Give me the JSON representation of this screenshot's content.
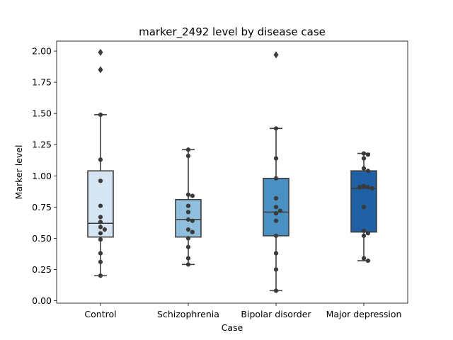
{
  "chart_data": {
    "type": "box",
    "title": "marker_2492 level by disease case",
    "xlabel": "Case",
    "ylabel": "Marker level",
    "ylim": [
      -0.02,
      2.08
    ],
    "yticks": [
      0.0,
      0.25,
      0.5,
      0.75,
      1.0,
      1.25,
      1.5,
      1.75,
      2.0
    ],
    "ytick_labels": [
      "0.00",
      "0.25",
      "0.50",
      "0.75",
      "1.00",
      "1.25",
      "1.50",
      "1.75",
      "2.00"
    ],
    "categories": [
      "Control",
      "Schizophrenia",
      "Bipolar disorder",
      "Major depression"
    ],
    "colors": [
      "#d6e5f3",
      "#8fbfdd",
      "#4a90c3",
      "#2060a5"
    ],
    "grid": false,
    "boxes": [
      {
        "q1": 0.51,
        "median": 0.62,
        "q3": 1.04,
        "whisker_low": 0.2,
        "whisker_high": 1.49,
        "outliers": [
          1.99,
          1.85
        ],
        "points": [
          1.49,
          1.13,
          0.96,
          0.76,
          0.67,
          0.63,
          0.59,
          0.57,
          0.54,
          0.49,
          0.38,
          0.31,
          0.2
        ]
      },
      {
        "q1": 0.51,
        "median": 0.65,
        "q3": 0.81,
        "whisker_low": 0.29,
        "whisker_high": 1.21,
        "outliers": [],
        "points": [
          1.21,
          1.16,
          0.85,
          0.84,
          0.76,
          0.71,
          0.65,
          0.64,
          0.57,
          0.55,
          0.5,
          0.43,
          0.34,
          0.29
        ]
      },
      {
        "q1": 0.52,
        "median": 0.71,
        "q3": 0.98,
        "whisker_low": 0.08,
        "whisker_high": 1.38,
        "outliers": [
          1.97
        ],
        "points": [
          1.38,
          1.14,
          0.98,
          0.82,
          0.75,
          0.72,
          0.7,
          0.64,
          0.52,
          0.38,
          0.25,
          0.08
        ]
      },
      {
        "q1": 0.55,
        "median": 0.9,
        "q3": 1.04,
        "whisker_low": 0.32,
        "whisker_high": 1.18,
        "outliers": [],
        "points": [
          1.18,
          1.17,
          1.14,
          1.06,
          1.04,
          0.92,
          0.91,
          0.9,
          0.91,
          0.75,
          0.56,
          0.54,
          0.52,
          0.34,
          0.32
        ]
      }
    ]
  }
}
